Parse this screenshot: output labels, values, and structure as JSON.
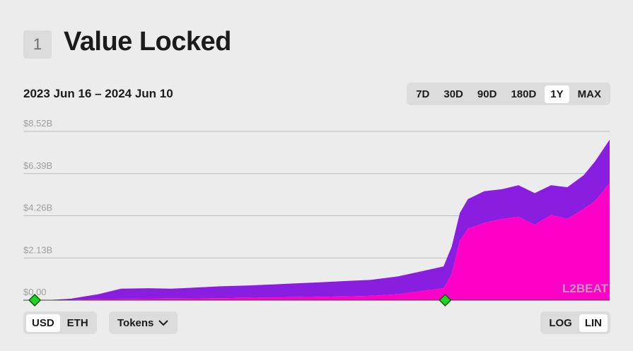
{
  "header": {
    "section_number": "1",
    "title": "Value Locked"
  },
  "date_range": "2023 Jun 16 – 2024 Jun 10",
  "range_buttons": [
    {
      "label": "7D",
      "active": false
    },
    {
      "label": "30D",
      "active": false
    },
    {
      "label": "90D",
      "active": false
    },
    {
      "label": "180D",
      "active": false
    },
    {
      "label": "1Y",
      "active": true
    },
    {
      "label": "MAX",
      "active": false
    }
  ],
  "currency_toggle": {
    "usd": "USD",
    "eth": "ETH",
    "selected": "USD"
  },
  "tokens_label": "Tokens",
  "scale_toggle": {
    "log": "LOG",
    "lin": "LIN",
    "selected": "LIN"
  },
  "watermark": "L2BEAT",
  "colors": {
    "series_top": "#8a1ee0",
    "series_bottom": "#ff00c8",
    "milestone": "#1fd51f",
    "gridline": "#bdbdbd",
    "tick_label": "#9e9e9e"
  },
  "chart_data": {
    "type": "area",
    "stacked": true,
    "x": [
      "2023-06-16",
      "2023-06-30",
      "2023-07-15",
      "2023-08-01",
      "2023-08-15",
      "2023-09-01",
      "2023-09-15",
      "2023-10-01",
      "2023-10-15",
      "2023-11-01",
      "2023-11-15",
      "2023-12-01",
      "2023-12-15",
      "2024-01-01",
      "2024-01-15",
      "2024-02-01",
      "2024-02-15",
      "2024-02-29",
      "2024-03-05",
      "2024-03-10",
      "2024-03-15",
      "2024-03-25",
      "2024-04-05",
      "2024-04-15",
      "2024-04-25",
      "2024-05-05",
      "2024-05-15",
      "2024-05-25",
      "2024-06-01",
      "2024-06-10"
    ],
    "series": [
      {
        "color": "#ff00c8",
        "values": [
          0,
          0,
          0.02,
          0.05,
          0.06,
          0.07,
          0.08,
          0.09,
          0.1,
          0.12,
          0.14,
          0.15,
          0.17,
          0.19,
          0.22,
          0.3,
          0.45,
          0.6,
          1.3,
          3.0,
          3.6,
          3.9,
          4.1,
          4.2,
          3.8,
          4.3,
          4.1,
          4.6,
          5.0,
          5.9
        ]
      },
      {
        "color": "#8a1ee0",
        "values": [
          0,
          0,
          0.05,
          0.25,
          0.52,
          0.53,
          0.5,
          0.55,
          0.6,
          0.62,
          0.65,
          0.7,
          0.73,
          0.78,
          0.8,
          0.9,
          1.0,
          1.1,
          1.4,
          1.4,
          1.5,
          1.6,
          1.5,
          1.6,
          1.6,
          1.5,
          1.6,
          1.7,
          2.0,
          2.2
        ]
      }
    ],
    "ylim": [
      0,
      8.52
    ],
    "y_ticks": [
      "$0.00",
      "$2.13B",
      "$4.26B",
      "$6.39B",
      "$8.52B"
    ],
    "y_tick_values": [
      0,
      2.13,
      4.26,
      6.39,
      8.52
    ],
    "grid": true,
    "milestones": [
      "2023-06-23",
      "2024-03-01"
    ]
  }
}
